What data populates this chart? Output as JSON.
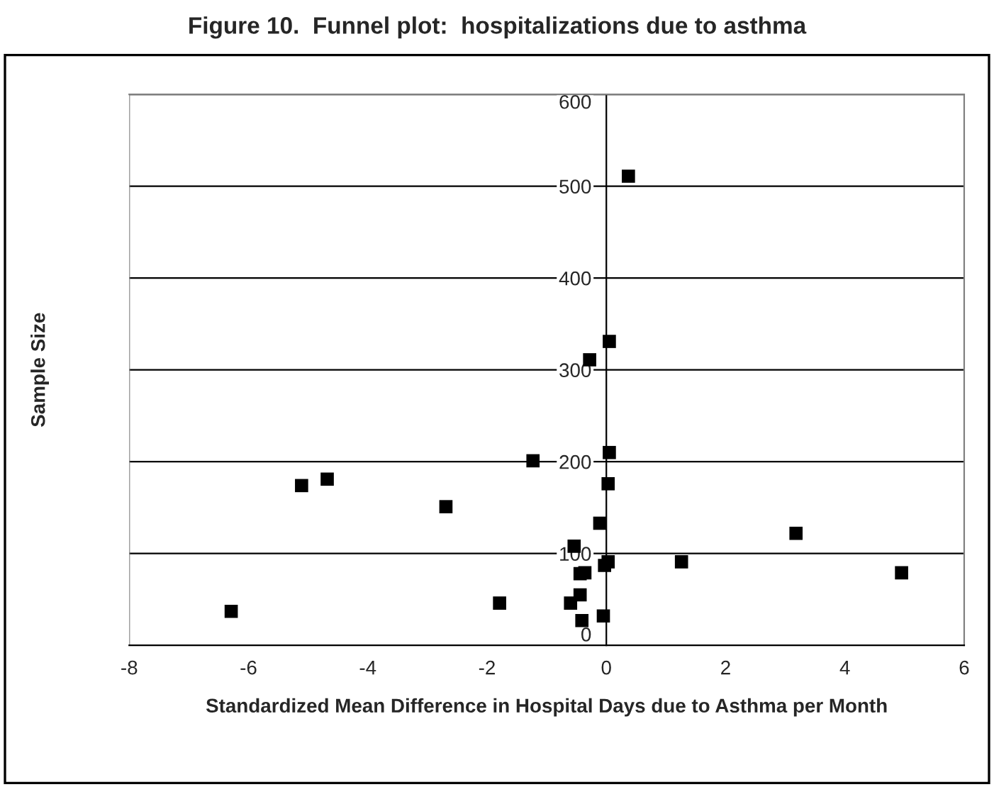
{
  "chart_data": {
    "type": "scatter",
    "title": "Figure 10.  Funnel plot:  hospitalizations due to asthma",
    "xlabel": "Standardized Mean Difference in Hospital Days due to Asthma per Month",
    "ylabel": "Sample Size",
    "x": [
      0.37,
      0.05,
      -0.28,
      -1.23,
      0.05,
      0.03,
      -5.11,
      -4.68,
      -2.69,
      -0.11,
      -0.54,
      3.18,
      1.26,
      4.95,
      0.03,
      -0.03,
      -0.44,
      -0.36,
      -0.44,
      -0.6,
      -1.79,
      -0.41,
      -0.05,
      -6.29
    ],
    "values": [
      511,
      331,
      311,
      201,
      210,
      176,
      174,
      181,
      151,
      133,
      108,
      122,
      91,
      79,
      91,
      87,
      78,
      79,
      55,
      46,
      46,
      27,
      32,
      37
    ],
    "color": "#000000",
    "marker": "square",
    "xlim": [
      -8,
      6
    ],
    "xticks": [
      -8,
      -6,
      -4,
      -2,
      0,
      2,
      4,
      6
    ],
    "ylim": [
      0,
      600
    ],
    "yticks": [
      0,
      100,
      200,
      300,
      400,
      500,
      600
    ],
    "grid": "y"
  }
}
